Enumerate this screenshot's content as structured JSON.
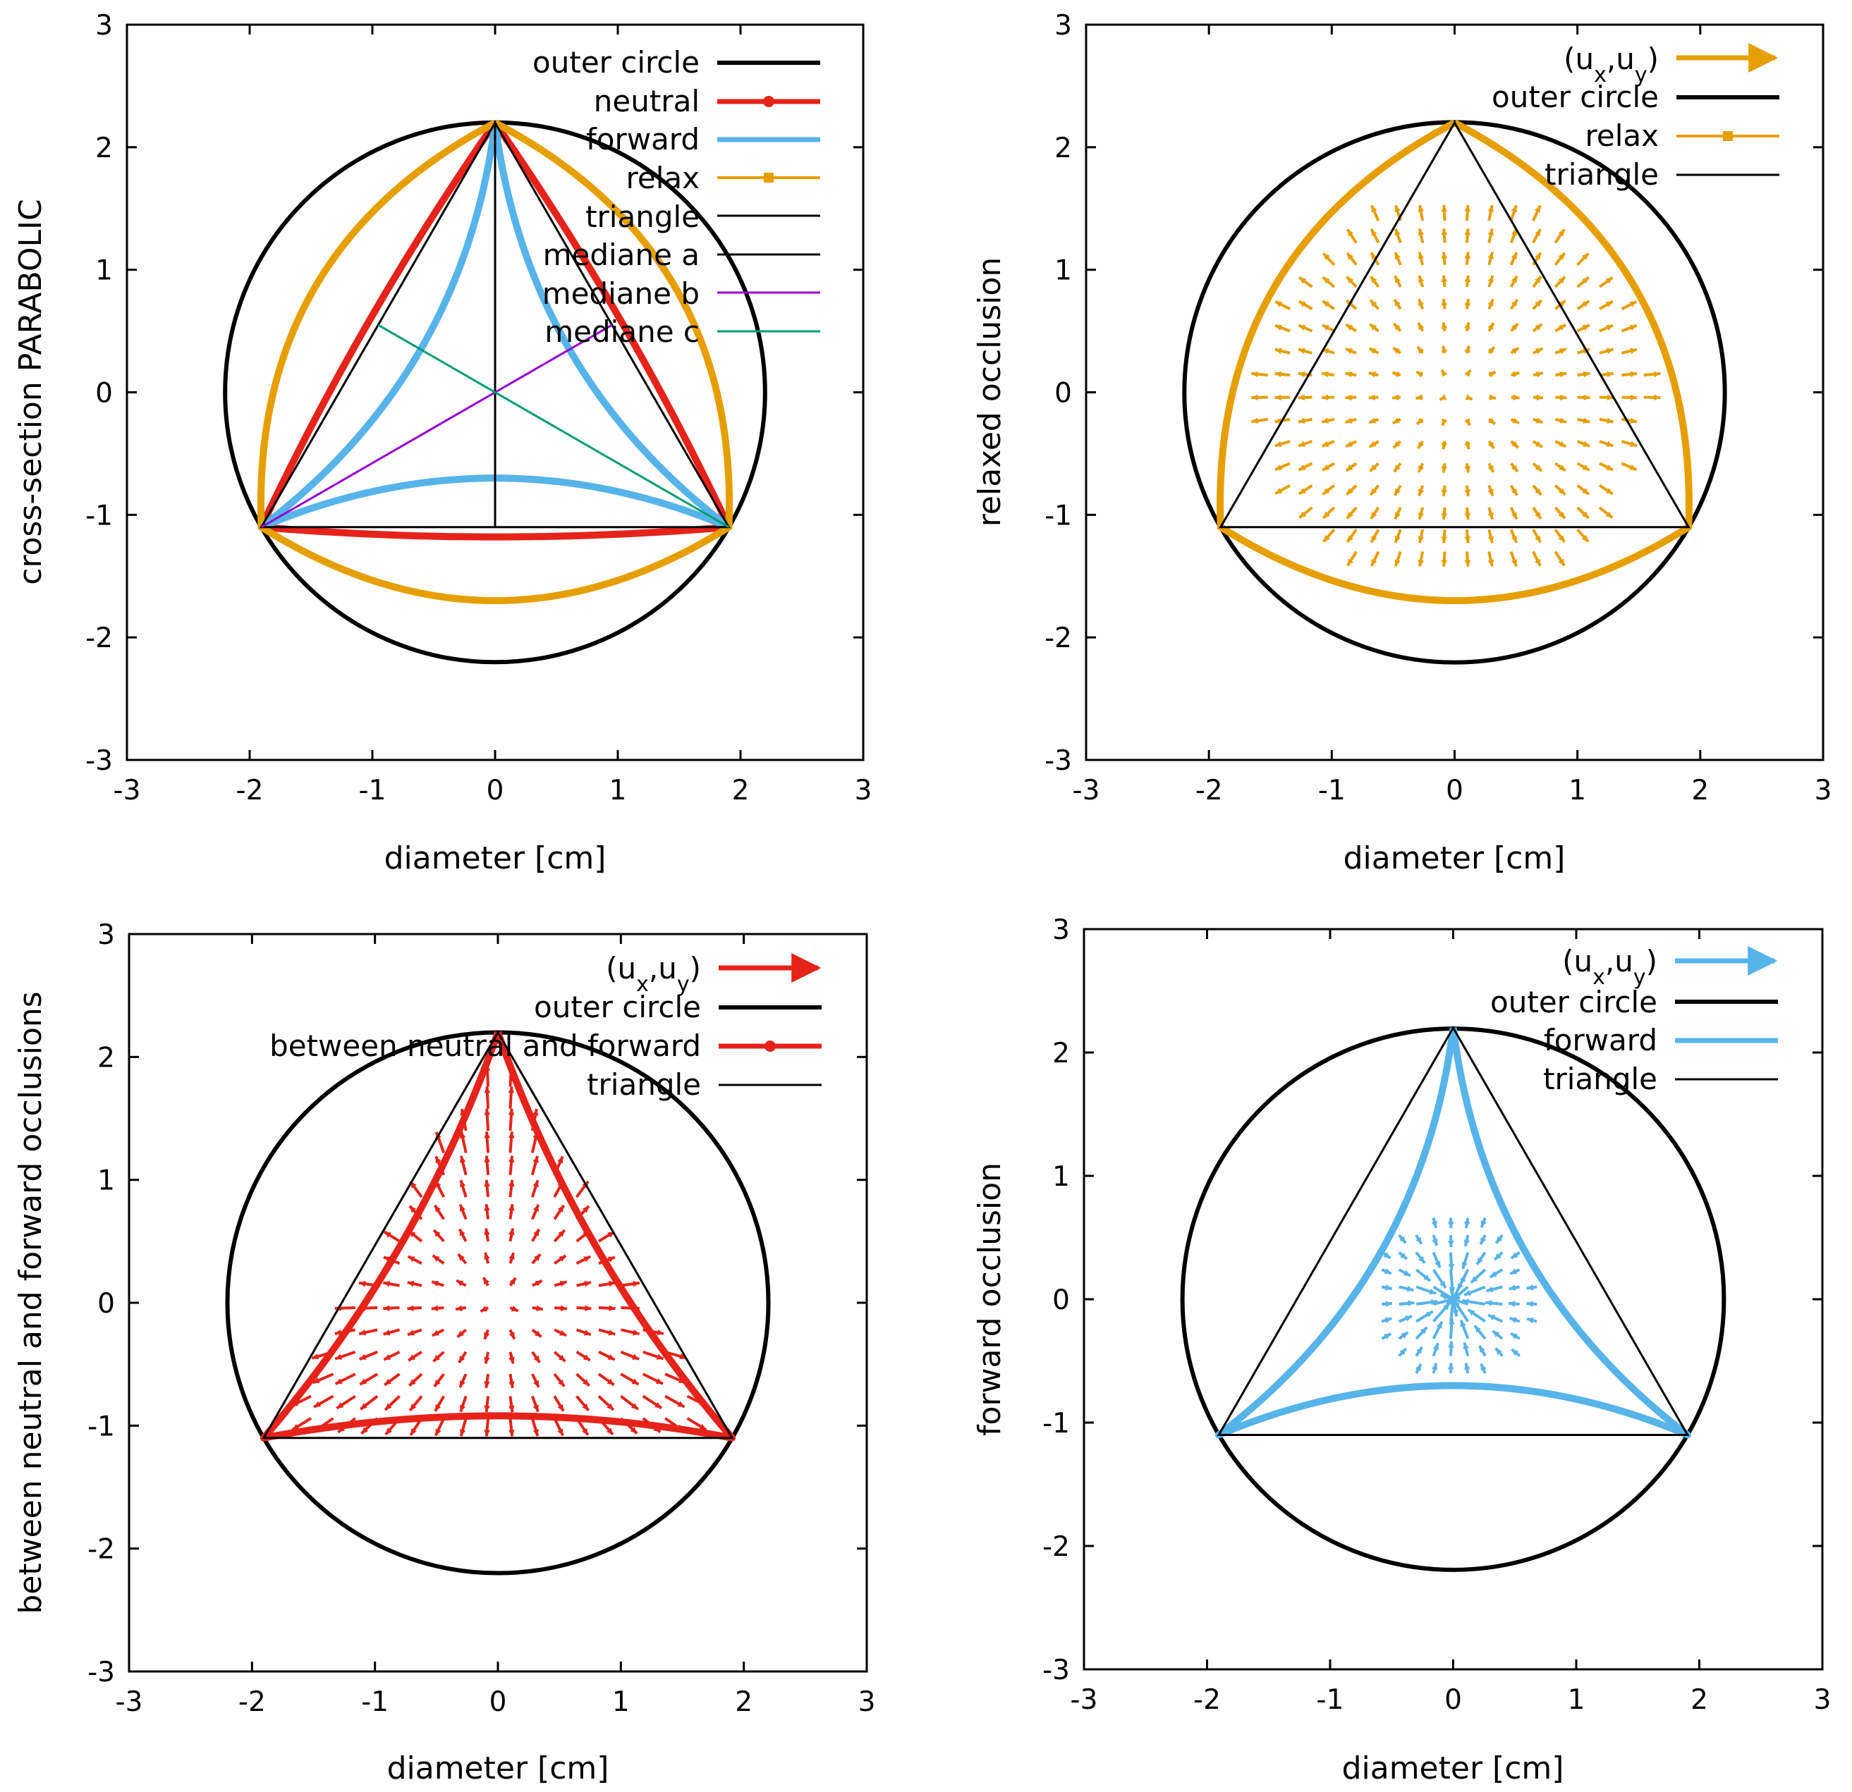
{
  "colors": {
    "black": "#000000",
    "red": "#e5231b",
    "sky": "#56b4e9",
    "orange": "#e69f00",
    "purple": "#9400d3",
    "green": "#009e73"
  },
  "chart_data": [
    {
      "type": "line",
      "title": "",
      "xlabel": "diameter [cm]",
      "ylabel": "cross-section PARABOLIC",
      "xlim": [
        -3,
        3
      ],
      "ylim": [
        -3,
        3
      ],
      "xticks": [
        "-3",
        "-2",
        "-1",
        "0",
        "1",
        "2",
        "3"
      ],
      "yticks": [
        "-3",
        "-2",
        "-1",
        "0",
        "1",
        "2",
        "3"
      ],
      "legend_position": "top-right",
      "series": [
        {
          "name": "outer circle",
          "kind": "circle",
          "radius": 2.2,
          "color": "#000000"
        },
        {
          "name": "neutral",
          "kind": "shape",
          "bulge": 0.08,
          "color": "#e5231b"
        },
        {
          "name": "forward",
          "kind": "shape",
          "bulge": -0.4,
          "color": "#56b4e9"
        },
        {
          "name": "relax",
          "kind": "shape",
          "bulge": 0.6,
          "color": "#e69f00"
        },
        {
          "name": "triangle",
          "kind": "triangle",
          "vertices": [
            [
              0,
              2.2
            ],
            [
              -1.905,
              -1.1
            ],
            [
              1.905,
              -1.1
            ]
          ],
          "color": "#000000"
        },
        {
          "name": "mediane a",
          "kind": "segment",
          "from": [
            0,
            2.2
          ],
          "to": [
            0,
            -1.1
          ],
          "color": "#000000"
        },
        {
          "name": "mediane b",
          "kind": "segment",
          "from": [
            -1.905,
            -1.1
          ],
          "to": [
            0.953,
            0.55
          ],
          "color": "#9400d3"
        },
        {
          "name": "mediane c",
          "kind": "segment",
          "from": [
            1.905,
            -1.1
          ],
          "to": [
            -0.953,
            0.55
          ],
          "color": "#009e73"
        }
      ]
    },
    {
      "type": "line",
      "title": "",
      "xlabel": "diameter [cm]",
      "ylabel": "relaxed occlusion",
      "xlim": [
        -3,
        3
      ],
      "ylim": [
        -3,
        3
      ],
      "xticks": [
        "-3",
        "-2",
        "-1",
        "0",
        "1",
        "2",
        "3"
      ],
      "yticks": [
        "-3",
        "-2",
        "-1",
        "0",
        "1",
        "2",
        "3"
      ],
      "legend_position": "top-right",
      "series": [
        {
          "name": "(u",
          "sub1": "x",
          "mid": ",u",
          "sub2": "y",
          "end": ")",
          "kind": "vectors",
          "field": "relax",
          "color": "#e69f00"
        },
        {
          "name": "outer circle",
          "kind": "circle",
          "radius": 2.2,
          "color": "#000000"
        },
        {
          "name": "relax",
          "kind": "shape",
          "bulge": 0.6,
          "color": "#e69f00"
        },
        {
          "name": "triangle",
          "kind": "triangle",
          "vertices": [
            [
              0,
              2.2
            ],
            [
              -1.905,
              -1.1
            ],
            [
              1.905,
              -1.1
            ]
          ],
          "color": "#000000"
        }
      ]
    },
    {
      "type": "line",
      "title": "",
      "xlabel": "diameter [cm]",
      "ylabel": "between neutral and forward occlusions",
      "xlim": [
        -3,
        3
      ],
      "ylim": [
        -3,
        3
      ],
      "xticks": [
        "-3",
        "-2",
        "-1",
        "0",
        "1",
        "2",
        "3"
      ],
      "yticks": [
        "-3",
        "-2",
        "-1",
        "0",
        "1",
        "2",
        "3"
      ],
      "legend_position": "top-right",
      "series": [
        {
          "name": "(u",
          "sub1": "x",
          "mid": ",u",
          "sub2": "y",
          "end": ")",
          "kind": "vectors",
          "field": "between",
          "color": "#e5231b"
        },
        {
          "name": "outer circle",
          "kind": "circle",
          "radius": 2.2,
          "color": "#000000"
        },
        {
          "name": "between neutral and forward",
          "kind": "shape",
          "bulge": -0.18,
          "color": "#e5231b"
        },
        {
          "name": "triangle",
          "kind": "triangle",
          "vertices": [
            [
              0,
              2.2
            ],
            [
              -1.905,
              -1.1
            ],
            [
              1.905,
              -1.1
            ]
          ],
          "color": "#000000"
        }
      ]
    },
    {
      "type": "line",
      "title": "",
      "xlabel": "diameter [cm]",
      "ylabel": "forward occlusion",
      "xlim": [
        -3,
        3
      ],
      "ylim": [
        -3,
        3
      ],
      "xticks": [
        "-3",
        "-2",
        "-1",
        "0",
        "1",
        "2",
        "3"
      ],
      "yticks": [
        "-3",
        "-2",
        "-1",
        "0",
        "1",
        "2",
        "3"
      ],
      "legend_position": "top-right",
      "series": [
        {
          "name": "(u",
          "sub1": "x",
          "mid": ",u",
          "sub2": "y",
          "end": ")",
          "kind": "vectors",
          "field": "forward",
          "color": "#56b4e9"
        },
        {
          "name": "outer circle",
          "kind": "circle",
          "radius": 2.2,
          "color": "#000000"
        },
        {
          "name": "forward",
          "kind": "shape",
          "bulge": -0.4,
          "color": "#56b4e9"
        },
        {
          "name": "triangle",
          "kind": "triangle",
          "vertices": [
            [
              0,
              2.2
            ],
            [
              -1.905,
              -1.1
            ],
            [
              1.905,
              -1.1
            ]
          ],
          "color": "#000000"
        }
      ]
    }
  ]
}
